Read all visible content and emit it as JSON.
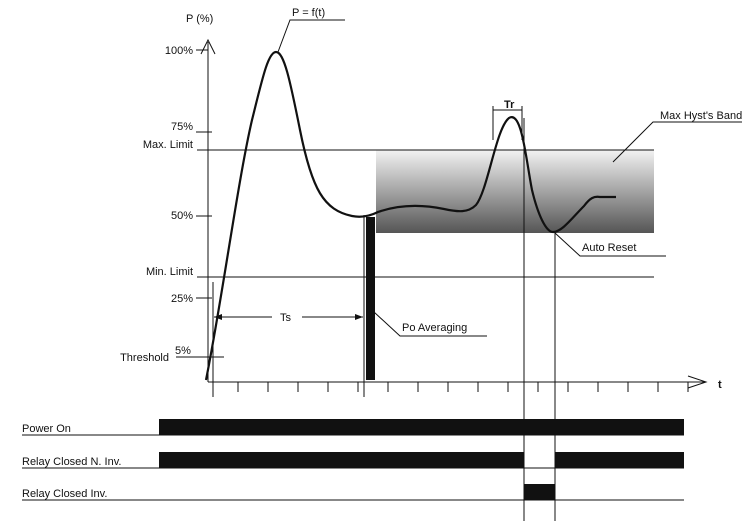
{
  "axes": {
    "y_label": "P  (%)",
    "x_label": "t"
  },
  "curve_label": "P  =  f(t)",
  "y_ticks": {
    "p100": "100%",
    "p75": "75%",
    "max_limit": "Max.  Limit",
    "p50": "50%",
    "min_limit": "Min.  Limit",
    "p25": "25%",
    "threshold": "Threshold",
    "p5": "5%"
  },
  "annotations": {
    "tr": "Tr",
    "max_hyst_band": "Max  Hyst's  Band",
    "auto_reset": "Auto  Reset",
    "ts": "Ts",
    "po_averaging": "Po  Averaging"
  },
  "timelines": {
    "power_on": "Power  On",
    "relay_closed_n_inv": "Relay  Closed  N.  Inv.",
    "relay_closed_inv": "Relay  Closed  Inv."
  },
  "colors": {
    "ink": "#111111",
    "band_top": "#f2f2f2",
    "band_bottom": "#555555"
  }
}
